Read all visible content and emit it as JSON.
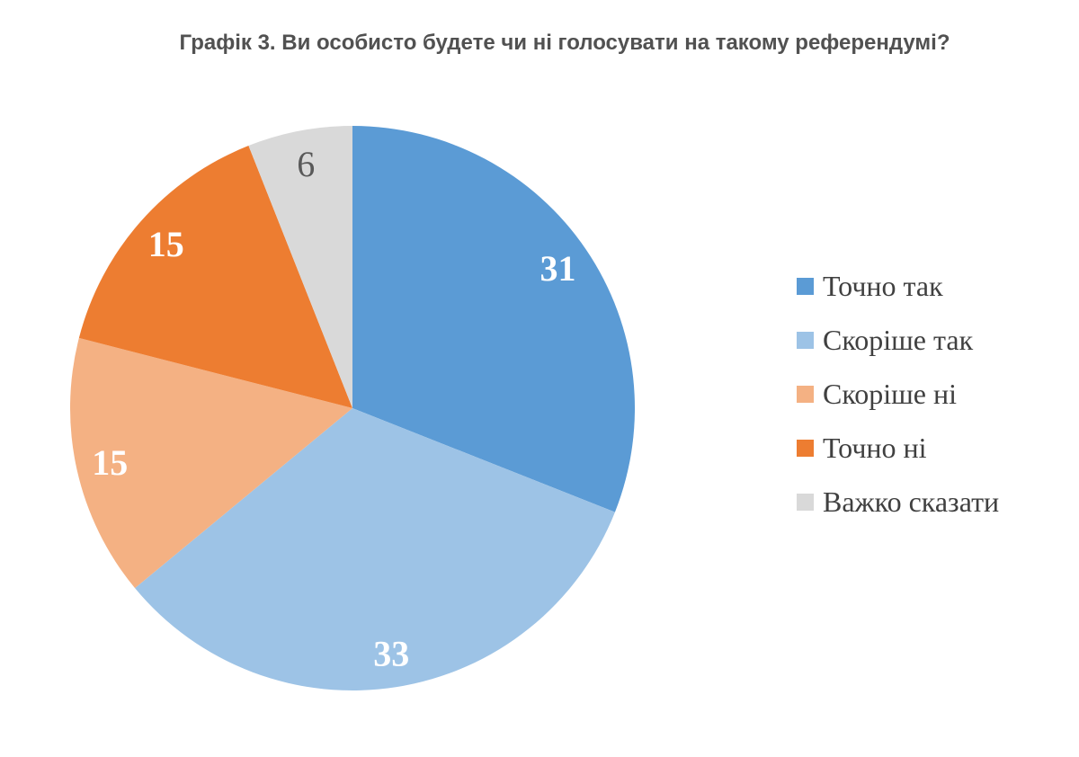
{
  "title": {
    "text": "Графік 3. Ви особисто будете чи ні голосувати на такому референдумі?",
    "color": "#515151"
  },
  "legend": {
    "text_color": "#404040",
    "position": "right"
  },
  "chart_data": {
    "type": "pie",
    "title": "Графік 3. Ви особисто будете чи ні голосувати на такому референдумі?",
    "categories": [
      "Точно так",
      "Скоріше так",
      "Скоріше ні",
      "Точно ні",
      "Важко сказати"
    ],
    "values": [
      31,
      33,
      15,
      15,
      6
    ],
    "slices": [
      {
        "label": "Точно так",
        "value": 31,
        "color": "#5B9BD5",
        "label_color": "#FFFFFF",
        "label_weight": "bold"
      },
      {
        "label": "Скоріше так",
        "value": 33,
        "color": "#9DC3E6",
        "label_color": "#FFFFFF",
        "label_weight": "bold"
      },
      {
        "label": "Скоріше ні",
        "value": 15,
        "color": "#F4B183",
        "label_color": "#FFFFFF",
        "label_weight": "bold"
      },
      {
        "label": "Точно ні",
        "value": 15,
        "color": "#ED7D31",
        "label_color": "#FFFFFF",
        "label_weight": "bold"
      },
      {
        "label": "Важко сказати",
        "value": 6,
        "color": "#D9D9D9",
        "label_color": "#595959",
        "label_weight": "regular"
      }
    ],
    "start_angle_deg": 0,
    "direction": "clockwise",
    "data_labels": "values-inside",
    "legend_position": "right",
    "grid": false
  }
}
